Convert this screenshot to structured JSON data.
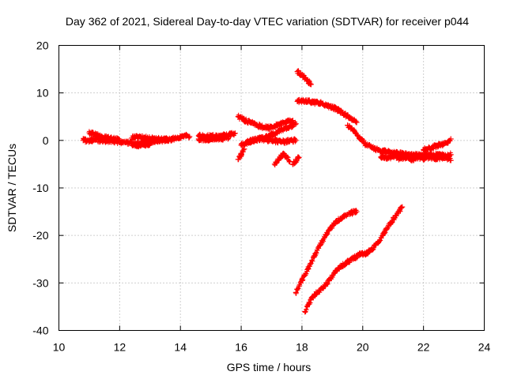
{
  "chart_data": {
    "type": "scatter",
    "title": "Day 362 of 2021, Sidereal Day-to-day VTEC variation (SDTVAR) for receiver p044",
    "xlabel": "GPS time / hours",
    "ylabel": "SDTVAR / TECUs",
    "xlim": [
      10,
      24
    ],
    "ylim": [
      -40,
      20
    ],
    "xticks": [
      "10",
      "12",
      "14",
      "16",
      "18",
      "20",
      "22",
      "24"
    ],
    "yticks": [
      "20",
      "10",
      "0",
      "-10",
      "-20",
      "-30",
      "-40"
    ],
    "grid": true,
    "legend": "none",
    "marker": "+",
    "color": "#ff0000",
    "series": [
      {
        "x": [
          10.8,
          11.0,
          11.2,
          11.4,
          11.6,
          11.8,
          12.0,
          12.2,
          12.4,
          12.6,
          12.8,
          13.0,
          13.2,
          13.4,
          13.6,
          13.8,
          14.0,
          14.2,
          14.3
        ],
        "y": [
          0,
          0,
          0.1,
          0,
          -0.1,
          -0.2,
          -0.3,
          -0.4,
          -0.6,
          -0.7,
          -0.5,
          -0.3,
          -0.1,
          0,
          0.1,
          0.4,
          0.8,
          1.0,
          0.8
        ]
      },
      {
        "x": [
          11.0,
          11.2,
          11.4,
          11.6,
          11.8,
          12.0
        ],
        "y": [
          1.6,
          1.2,
          0.8,
          0.5,
          0.3,
          0.1
        ]
      },
      {
        "x": [
          12.4,
          12.6,
          12.8,
          13.0,
          13.2,
          13.4,
          13.6
        ],
        "y": [
          0.5,
          0.7,
          0.6,
          0.4,
          0.3,
          0.2,
          0.2
        ]
      },
      {
        "x": [
          12.4,
          12.6,
          12.8,
          13.0
        ],
        "y": [
          -0.8,
          -1.0,
          -0.9,
          -0.7
        ]
      },
      {
        "x": [
          14.6,
          14.8,
          15.0,
          15.2,
          15.4,
          15.6,
          15.8
        ],
        "y": [
          1.0,
          0.8,
          0.9,
          0.8,
          1.0,
          1.2,
          1.5
        ]
      },
      {
        "x": [
          14.6,
          14.8,
          15.0,
          15.2,
          15.4,
          15.6
        ],
        "y": [
          0.3,
          0.2,
          0.2,
          0.3,
          0.4,
          0.7
        ]
      },
      {
        "x": [
          15.9,
          16.1,
          16.3,
          16.5,
          16.7,
          16.9,
          17.1,
          17.3,
          17.5,
          17.7
        ],
        "y": [
          5.0,
          4.3,
          3.8,
          3.3,
          2.8,
          2.7,
          3.0,
          3.5,
          4.0,
          4.2
        ]
      },
      {
        "x": [
          15.9,
          16.0,
          16.1
        ],
        "y": [
          -4.0,
          -3.0,
          -1.8
        ]
      },
      {
        "x": [
          16.0,
          16.2,
          16.4,
          16.6,
          16.8,
          17.0,
          17.2,
          17.4,
          17.6,
          17.8
        ],
        "y": [
          -1.0,
          -0.5,
          0,
          0.3,
          0.6,
          1.2,
          1.8,
          2.5,
          2.9,
          3.5
        ]
      },
      {
        "x": [
          16.2,
          16.4,
          16.6,
          16.8,
          17.0,
          17.2,
          17.4,
          17.6,
          17.8
        ],
        "y": [
          -0.3,
          0,
          0.3,
          0.2,
          0,
          -0.2,
          -0.3,
          -0.1,
          0
        ]
      },
      {
        "x": [
          17.1,
          17.2,
          17.3,
          17.4,
          17.5,
          17.6
        ],
        "y": [
          -5.0,
          -4.2,
          -3.4,
          -3.0,
          -3.5,
          -4.5
        ]
      },
      {
        "x": [
          17.7,
          17.8,
          17.9
        ],
        "y": [
          -5.0,
          -4.3,
          -3.6
        ]
      },
      {
        "x": [
          17.85,
          18.0,
          18.15,
          18.3
        ],
        "y": [
          14.5,
          13.8,
          12.8,
          11.8
        ]
      },
      {
        "x": [
          17.85,
          18.0,
          18.2,
          18.4,
          18.6,
          18.8,
          19.0,
          19.2,
          19.4,
          19.6,
          19.8
        ],
        "y": [
          8.2,
          8.4,
          8.3,
          8.0,
          7.9,
          7.4,
          7.0,
          6.4,
          5.5,
          4.6,
          3.8
        ]
      },
      {
        "x": [
          19.5,
          19.7,
          19.9,
          20.1,
          20.3,
          20.5,
          20.7,
          20.9,
          21.1,
          21.3,
          21.5,
          21.7,
          21.9,
          22.1,
          22.3,
          22.5,
          22.7,
          22.9
        ],
        "y": [
          3.2,
          2.0,
          0.5,
          -0.8,
          -1.5,
          -2.0,
          -2.3,
          -2.5,
          -2.7,
          -2.8,
          -3.0,
          -3.0,
          -3.1,
          -3.0,
          -3.2,
          -3.0,
          -3.3,
          -3.0
        ]
      },
      {
        "x": [
          20.6,
          20.8,
          21.0,
          21.2,
          21.4,
          21.6,
          21.8,
          22.0,
          22.2,
          22.4,
          22.6,
          22.8,
          22.9
        ],
        "y": [
          -3.5,
          -3.7,
          -3.4,
          -3.8,
          -3.6,
          -4.0,
          -3.7,
          -3.8,
          -3.5,
          -3.8,
          -3.6,
          -3.9,
          -4.2
        ]
      },
      {
        "x": [
          22.0,
          22.2,
          22.4,
          22.6,
          22.8,
          22.9
        ],
        "y": [
          -2.0,
          -1.6,
          -1.2,
          -0.8,
          -0.5,
          0.3
        ]
      },
      {
        "x": [
          17.8,
          18.0,
          18.2,
          18.4,
          18.6,
          18.8,
          19.0,
          19.2,
          19.4,
          19.6,
          19.8
        ],
        "y": [
          -32.0,
          -29.5,
          -27.0,
          -24.5,
          -22.0,
          -19.8,
          -18.0,
          -16.8,
          -16.0,
          -15.3,
          -15.0
        ]
      },
      {
        "x": [
          18.1,
          18.3,
          18.5,
          18.7,
          18.9,
          19.1,
          19.3,
          19.5,
          19.7,
          19.9,
          20.1,
          20.3,
          20.5,
          20.7,
          20.9,
          21.1,
          21.3
        ],
        "y": [
          -36.0,
          -33.5,
          -32.0,
          -31.0,
          -29.5,
          -27.5,
          -26.5,
          -25.5,
          -24.8,
          -24.0,
          -23.8,
          -23.0,
          -21.5,
          -19.5,
          -17.5,
          -15.8,
          -14.0
        ]
      }
    ]
  }
}
